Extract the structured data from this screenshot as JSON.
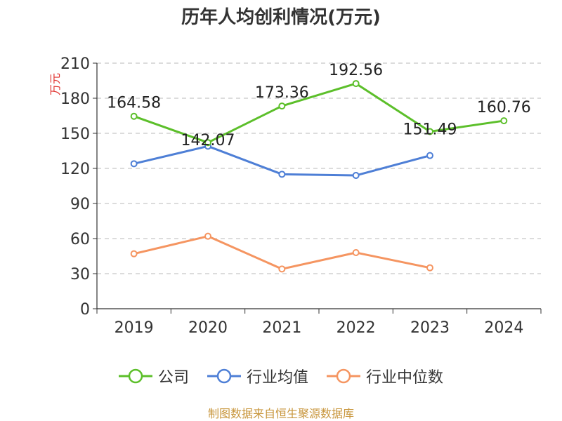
{
  "chart_data": {
    "type": "line",
    "title": "历年人均创利情况(万元)",
    "ylabel": "万元",
    "ylim": [
      0,
      210
    ],
    "yticks": [
      0,
      30,
      60,
      90,
      120,
      150,
      180,
      210
    ],
    "categories": [
      "2019",
      "2020",
      "2021",
      "2022",
      "2023",
      "2024"
    ],
    "grid": true,
    "legend_position": "bottom",
    "series": [
      {
        "name": "公司",
        "color": "#5cbf2a",
        "values": [
          164.58,
          142.07,
          173.36,
          192.56,
          151.49,
          160.76
        ],
        "labels": [
          "164.58",
          "142.07",
          "173.36",
          "192.56",
          "151.49",
          "160.76"
        ]
      },
      {
        "name": "行业均值",
        "color": "#4e7fd6",
        "values": [
          124,
          139,
          115,
          114,
          131,
          null
        ],
        "labels": []
      },
      {
        "name": "行业中位数",
        "color": "#f59561",
        "values": [
          47,
          62,
          34,
          48,
          35,
          null
        ],
        "labels": []
      }
    ],
    "source": "制图数据来自恒生聚源数据库"
  }
}
